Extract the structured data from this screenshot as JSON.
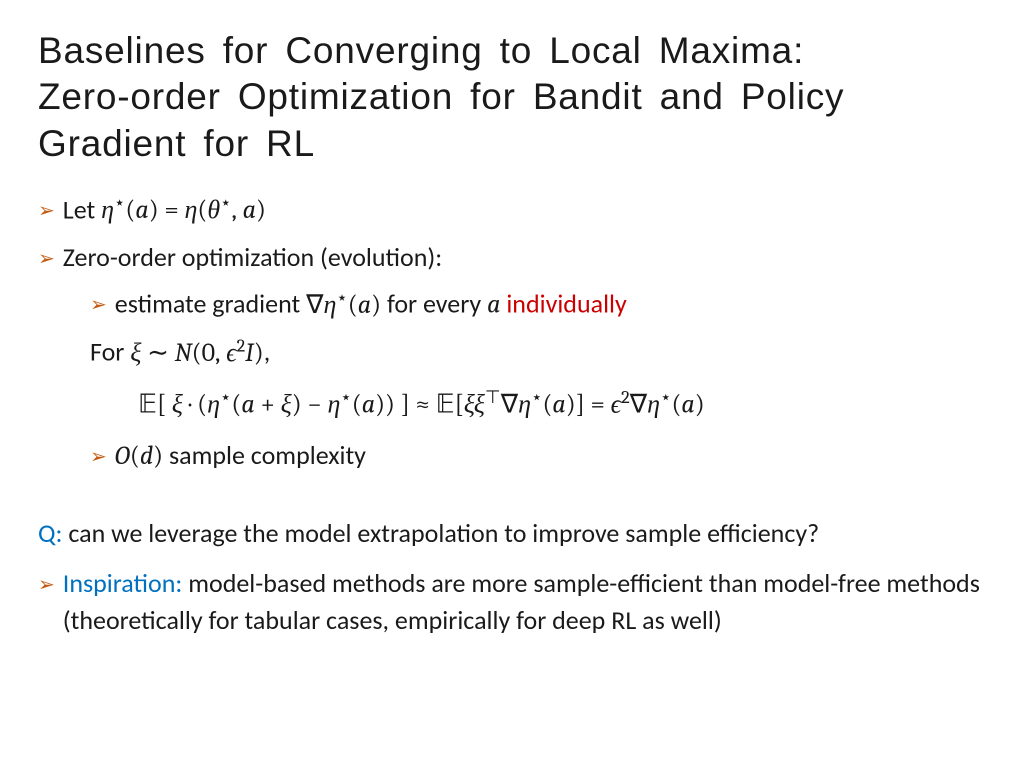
{
  "colors": {
    "bullet": "#c55a11",
    "red_text": "#cc0000",
    "blue_text": "#0070c0",
    "body_text": "#1a1a1a",
    "background": "#ffffff"
  },
  "typography": {
    "title_font": "Impact / decorative condensed",
    "title_size_pt": 28,
    "body_font": "Calibri",
    "body_size_pt": 20,
    "math_font": "Cambria Math"
  },
  "title_line1": "Baselines for Converging to Local Maxima:",
  "title_line2": "Zero-order Optimization for Bandit and Policy Gradient for RL",
  "bullet_glyph": "➢",
  "b1_pre": "Let ",
  "b1_math": "η⋆(a) = η(θ⋆, a)",
  "b2": "Zero-order optimization (evolution):",
  "b2a_pre": "estimate gradient ",
  "b2a_math": "∇η⋆(a)",
  "b2a_mid": " for every ",
  "b2a_math2": "a",
  "b2a_red": " individually",
  "for_pre": "For ",
  "for_math": "ξ ∼ N(0, ε²I)",
  "for_post": ",",
  "eq": "𝔼[ ξ · (η⋆(a + ξ) − η⋆(a)) ] ≈ 𝔼[ξξᵀ∇η⋆(a)] = ε²∇η⋆(a)",
  "b2b_math": "O(d)",
  "b2b_post": " sample complexity",
  "q_label": "Q:",
  "q_text": " can we leverage the model extrapolation to improve sample efficiency?",
  "insp_label": "Inspiration:",
  "insp_text": " model-based methods are more sample-efficient than model-free methods (theoretically for tabular cases, empirically for deep RL as well)"
}
